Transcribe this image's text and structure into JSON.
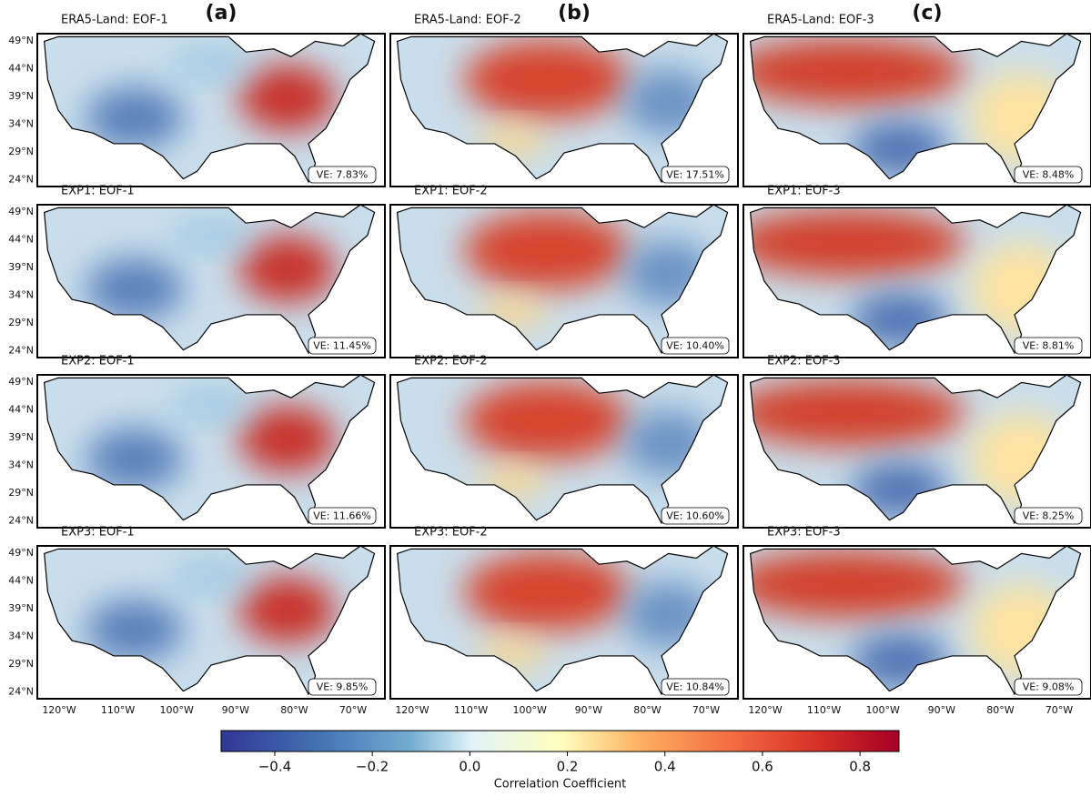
{
  "figure_letters": [
    "(a)",
    "(b)",
    "(c)"
  ],
  "panels": [
    [
      {
        "title": "ERA5-Land: EOF-1",
        "ve": "VE: 7.83%"
      },
      {
        "title": "ERA5-Land: EOF-2",
        "ve": "VE: 17.51%"
      },
      {
        "title": "ERA5-Land: EOF-3",
        "ve": "VE: 8.48%"
      }
    ],
    [
      {
        "title": "EXP1: EOF-1",
        "ve": "VE: 11.45%"
      },
      {
        "title": "EXP1: EOF-2",
        "ve": "VE: 10.40%"
      },
      {
        "title": "EXP1: EOF-3",
        "ve": "VE: 8.81%"
      }
    ],
    [
      {
        "title": "EXP2: EOF-1",
        "ve": "VE: 11.66%"
      },
      {
        "title": "EXP2: EOF-2",
        "ve": "VE: 10.60%"
      },
      {
        "title": "EXP2: EOF-3",
        "ve": "VE: 8.25%"
      }
    ],
    [
      {
        "title": "EXP3: EOF-1",
        "ve": "VE: 9.85%"
      },
      {
        "title": "EXP3: EOF-2",
        "ve": "VE: 10.84%"
      },
      {
        "title": "EXP3: EOF-3",
        "ve": "VE: 9.08%"
      }
    ]
  ],
  "lat_labels": [
    "49°N",
    "44°N",
    "39°N",
    "34°N",
    "29°N",
    "24°N"
  ],
  "lon_labels": [
    "120°W",
    "110°W",
    "100°W",
    "90°W",
    "80°W",
    "70°W"
  ],
  "colorbar": {
    "label": "Correlation Coefficient",
    "range": [
      -0.51,
      0.88
    ],
    "ticks": [
      {
        "value": -0.4,
        "label": "−0.4"
      },
      {
        "value": -0.2,
        "label": "−0.2"
      },
      {
        "value": 0,
        "label": "0.0"
      },
      0.2,
      0.4,
      0.6,
      0.8
    ]
  }
}
